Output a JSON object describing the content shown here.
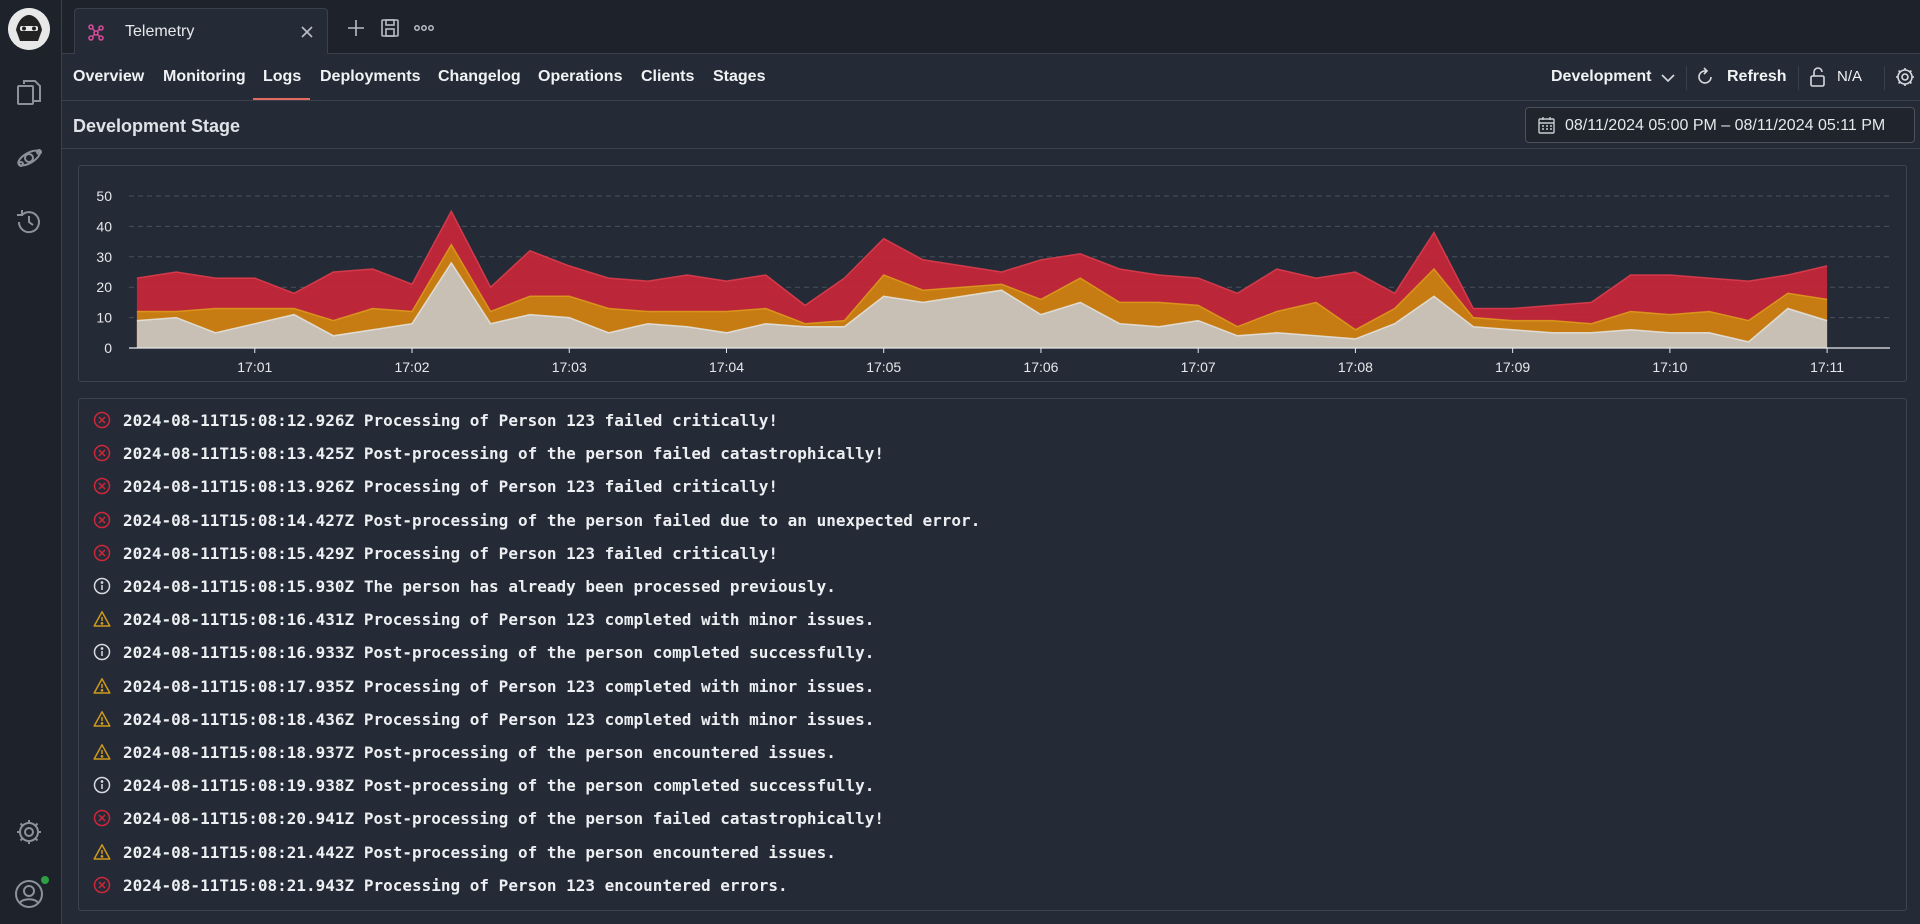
{
  "tab": {
    "label": "Telemetry"
  },
  "nav": {
    "items": [
      "Overview",
      "Monitoring",
      "Logs",
      "Deployments",
      "Changelog",
      "Operations",
      "Clients",
      "Stages"
    ],
    "active": "Logs",
    "environment": "Development",
    "refresh": "Refresh",
    "lock_status": "N/A"
  },
  "stage": {
    "title": "Development Stage",
    "date_range": "08/11/2024 05:00 PM – 08/11/2024 05:11 PM"
  },
  "colors": {
    "error": "#d0263a",
    "warning": "#c8860f",
    "info": "#c9ccd2",
    "accent": "#e26a5f"
  },
  "chart_data": {
    "type": "area",
    "stacked": true,
    "ylim": [
      0,
      50
    ],
    "yticks": [
      "0",
      "10",
      "20",
      "30",
      "40",
      "50"
    ],
    "xlim": [
      0.2,
      11.4
    ],
    "xticks": [
      {
        "x": 1,
        "label": "17:01"
      },
      {
        "x": 2,
        "label": "17:02"
      },
      {
        "x": 3,
        "label": "17:03"
      },
      {
        "x": 4,
        "label": "17:04"
      },
      {
        "x": 5,
        "label": "17:05"
      },
      {
        "x": 6,
        "label": "17:06"
      },
      {
        "x": 7,
        "label": "17:07"
      },
      {
        "x": 8,
        "label": "17:08"
      },
      {
        "x": 9,
        "label": "17:09"
      },
      {
        "x": 10,
        "label": "17:10"
      },
      {
        "x": 11,
        "label": "17:11"
      }
    ],
    "grid": true,
    "x": [
      0.25,
      0.5,
      0.75,
      1.0,
      1.25,
      1.5,
      1.75,
      2.0,
      2.25,
      2.5,
      2.75,
      3.0,
      3.25,
      3.5,
      3.75,
      4.0,
      4.25,
      4.5,
      4.75,
      5.0,
      5.25,
      5.5,
      5.75,
      6.0,
      6.25,
      6.5,
      6.75,
      7.0,
      7.25,
      7.5,
      7.75,
      8.0,
      8.25,
      8.5,
      8.75,
      9.0,
      9.25,
      9.5,
      9.75,
      10.0,
      10.25,
      10.5,
      10.75,
      11.0
    ],
    "series": [
      {
        "level": "info",
        "values": [
          9,
          10,
          5,
          8,
          11,
          4,
          6,
          8,
          28,
          8,
          11,
          10,
          5,
          8,
          7,
          5,
          8,
          7,
          7,
          17,
          15,
          17,
          19,
          11,
          15,
          8,
          7,
          9,
          4,
          5,
          4,
          3,
          8,
          17,
          7,
          6,
          5,
          5,
          6,
          5,
          5,
          2,
          13,
          9
        ]
      },
      {
        "level": "warning",
        "values": [
          3,
          2,
          8,
          5,
          2,
          5,
          7,
          4,
          6,
          4,
          6,
          7,
          8,
          4,
          5,
          7,
          5,
          1,
          2,
          7,
          4,
          3,
          2,
          5,
          8,
          7,
          8,
          5,
          3,
          7,
          11,
          3,
          5,
          9,
          3,
          3,
          4,
          3,
          6,
          6,
          7,
          7,
          5,
          7
        ]
      },
      {
        "level": "error",
        "values": [
          11,
          13,
          10,
          10,
          5,
          16,
          13,
          9,
          11,
          8,
          15,
          10,
          10,
          10,
          12,
          10,
          11,
          6,
          14,
          12,
          10,
          7,
          4,
          13,
          8,
          11,
          9,
          9,
          11,
          14,
          8,
          19,
          5,
          12,
          3,
          4,
          5,
          7,
          12,
          13,
          11,
          13,
          6,
          11
        ]
      }
    ]
  },
  "logs": [
    {
      "level": "error",
      "time": "2024-08-11T15:08:12.926Z",
      "message": "Processing of Person 123 failed critically!"
    },
    {
      "level": "error",
      "time": "2024-08-11T15:08:13.425Z",
      "message": "Post-processing of the person failed catastrophically!"
    },
    {
      "level": "error",
      "time": "2024-08-11T15:08:13.926Z",
      "message": "Processing of Person 123 failed critically!"
    },
    {
      "level": "error",
      "time": "2024-08-11T15:08:14.427Z",
      "message": "Post-processing of the person failed due to an unexpected error."
    },
    {
      "level": "error",
      "time": "2024-08-11T15:08:15.429Z",
      "message": "Processing of Person 123 failed critically!"
    },
    {
      "level": "info",
      "time": "2024-08-11T15:08:15.930Z",
      "message": "The person has already been processed previously."
    },
    {
      "level": "warning",
      "time": "2024-08-11T15:08:16.431Z",
      "message": "Processing of Person 123 completed with minor issues."
    },
    {
      "level": "info",
      "time": "2024-08-11T15:08:16.933Z",
      "message": "Post-processing of the person completed successfully."
    },
    {
      "level": "warning",
      "time": "2024-08-11T15:08:17.935Z",
      "message": "Processing of Person 123 completed with minor issues."
    },
    {
      "level": "warning",
      "time": "2024-08-11T15:08:18.436Z",
      "message": "Processing of Person 123 completed with minor issues."
    },
    {
      "level": "warning",
      "time": "2024-08-11T15:08:18.937Z",
      "message": "Post-processing of the person encountered issues."
    },
    {
      "level": "info",
      "time": "2024-08-11T15:08:19.938Z",
      "message": "Post-processing of the person completed successfully."
    },
    {
      "level": "error",
      "time": "2024-08-11T15:08:20.941Z",
      "message": "Post-processing of the person failed catastrophically!"
    },
    {
      "level": "warning",
      "time": "2024-08-11T15:08:21.442Z",
      "message": "Post-processing of the person encountered issues."
    },
    {
      "level": "error",
      "time": "2024-08-11T15:08:21.943Z",
      "message": "Processing of Person 123 encountered errors."
    }
  ],
  "icons": {
    "rail": [
      "explorer-icon",
      "integrations-icon",
      "history-icon",
      "settings-icon",
      "account-icon"
    ],
    "toolbar": [
      "new-tab-icon",
      "save-icon",
      "more-icon"
    ]
  }
}
